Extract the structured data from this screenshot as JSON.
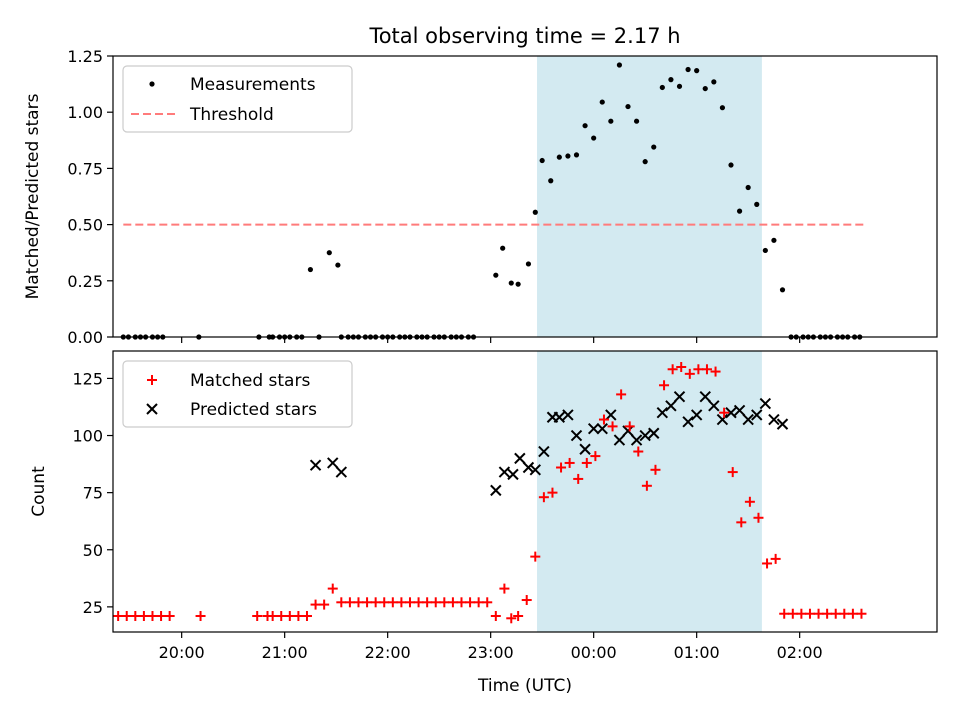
{
  "chart_data": [
    {
      "type": "scatter",
      "title": "Total observing time = 2.17 h",
      "xlabel": "",
      "ylabel": "Matched/Predicted stars",
      "ylim": [
        0,
        1.25
      ],
      "yticks": [
        "0.00",
        "0.25",
        "0.50",
        "0.75",
        "1.00",
        "1.25"
      ],
      "xlim": [
        "19:20",
        "03:20"
      ],
      "xtick_values": [
        "20:00",
        "21:00",
        "22:00",
        "23:00",
        "00:00",
        "01:00",
        "02:00"
      ],
      "shaded_interval": [
        "23:27",
        "01:38"
      ],
      "shade_color": "#d3eaf1",
      "legend_position": "upper left",
      "series": [
        {
          "name": "Measurements",
          "marker": "dot",
          "color": "#000000",
          "points": [
            [
              "19:26",
              0
            ],
            [
              "19:29",
              0
            ],
            [
              "19:33",
              0
            ],
            [
              "19:36",
              0
            ],
            [
              "19:39",
              0
            ],
            [
              "19:43",
              0
            ],
            [
              "19:46",
              0
            ],
            [
              "19:49",
              0
            ],
            [
              "20:10",
              0
            ],
            [
              "20:45",
              0
            ],
            [
              "20:51",
              0
            ],
            [
              "20:53",
              0
            ],
            [
              "20:57",
              0
            ],
            [
              "21:00",
              0
            ],
            [
              "21:03",
              0
            ],
            [
              "21:07",
              0
            ],
            [
              "21:10",
              0
            ],
            [
              "21:15",
              0.3
            ],
            [
              "21:20",
              0
            ],
            [
              "21:26",
              0.375
            ],
            [
              "21:31",
              0.32
            ],
            [
              "21:33",
              0
            ],
            [
              "21:37",
              0
            ],
            [
              "21:40",
              0
            ],
            [
              "21:43",
              0
            ],
            [
              "21:47",
              0
            ],
            [
              "21:50",
              0
            ],
            [
              "21:53",
              0
            ],
            [
              "21:57",
              0
            ],
            [
              "22:00",
              0
            ],
            [
              "22:03",
              0
            ],
            [
              "22:07",
              0
            ],
            [
              "22:10",
              0
            ],
            [
              "22:13",
              0
            ],
            [
              "22:17",
              0
            ],
            [
              "22:20",
              0
            ],
            [
              "22:23",
              0
            ],
            [
              "22:27",
              0
            ],
            [
              "22:30",
              0
            ],
            [
              "22:33",
              0
            ],
            [
              "22:37",
              0
            ],
            [
              "22:40",
              0
            ],
            [
              "22:43",
              0
            ],
            [
              "22:47",
              0
            ],
            [
              "22:50",
              0
            ],
            [
              "23:03",
              0.275
            ],
            [
              "23:07",
              0.395
            ],
            [
              "23:12",
              0.24
            ],
            [
              "23:16",
              0.235
            ],
            [
              "23:22",
              0.325
            ],
            [
              "23:26",
              0.555
            ],
            [
              "23:30",
              0.785
            ],
            [
              "23:35",
              0.695
            ],
            [
              "23:40",
              0.8
            ],
            [
              "23:45",
              0.805
            ],
            [
              "23:50",
              0.81
            ],
            [
              "23:55",
              0.94
            ],
            [
              "00:00",
              0.885
            ],
            [
              "00:05",
              1.045
            ],
            [
              "00:10",
              0.96
            ],
            [
              "00:15",
              1.21
            ],
            [
              "00:20",
              1.025
            ],
            [
              "00:25",
              0.96
            ],
            [
              "00:30",
              0.78
            ],
            [
              "00:35",
              0.845
            ],
            [
              "00:40",
              1.11
            ],
            [
              "00:45",
              1.145
            ],
            [
              "00:50",
              1.115
            ],
            [
              "00:55",
              1.19
            ],
            [
              "01:00",
              1.185
            ],
            [
              "01:05",
              1.105
            ],
            [
              "01:10",
              1.135
            ],
            [
              "01:15",
              1.02
            ],
            [
              "01:20",
              0.765
            ],
            [
              "01:25",
              0.56
            ],
            [
              "01:30",
              0.665
            ],
            [
              "01:35",
              0.59
            ],
            [
              "01:40",
              0.385
            ],
            [
              "01:45",
              0.43
            ],
            [
              "01:50",
              0.21
            ],
            [
              "01:55",
              0
            ],
            [
              "01:58",
              0
            ],
            [
              "02:02",
              0
            ],
            [
              "02:05",
              0
            ],
            [
              "02:08",
              0
            ],
            [
              "02:12",
              0
            ],
            [
              "02:15",
              0
            ],
            [
              "02:18",
              0
            ],
            [
              "02:22",
              0
            ],
            [
              "02:25",
              0
            ],
            [
              "02:28",
              0
            ],
            [
              "02:32",
              0
            ],
            [
              "02:35",
              0
            ]
          ]
        },
        {
          "name": "Threshold",
          "type": "line",
          "style": "dashed",
          "color": "#ff7b7b",
          "points": [
            [
              "19:26",
              0.5
            ],
            [
              "02:38",
              0.5
            ]
          ]
        }
      ]
    },
    {
      "type": "scatter",
      "xlabel": "Time (UTC)",
      "ylabel": "Count",
      "ylim": [
        14,
        137
      ],
      "yticks": [
        "25",
        "50",
        "75",
        "100",
        "125"
      ],
      "xlim": [
        "19:20",
        "03:20"
      ],
      "xticks": [
        "20:00",
        "21:00",
        "22:00",
        "23:00",
        "00:00",
        "01:00",
        "02:00"
      ],
      "xtick_values": [
        "20:00",
        "21:00",
        "22:00",
        "23:00",
        "00:00",
        "01:00",
        "02:00"
      ],
      "shaded_interval": [
        "23:27",
        "01:38"
      ],
      "shade_color": "#d3eaf1",
      "legend_position": "upper left",
      "series": [
        {
          "name": "Matched stars",
          "marker": "plus",
          "color": "#ff0000",
          "points": [
            [
              "19:23",
              21
            ],
            [
              "19:28",
              21
            ],
            [
              "19:33",
              21
            ],
            [
              "19:38",
              21
            ],
            [
              "19:43",
              21
            ],
            [
              "19:48",
              21
            ],
            [
              "19:53",
              21
            ],
            [
              "20:11",
              21
            ],
            [
              "20:44",
              21
            ],
            [
              "20:50",
              21
            ],
            [
              "20:53",
              21
            ],
            [
              "20:58",
              21
            ],
            [
              "21:03",
              21
            ],
            [
              "21:08",
              21
            ],
            [
              "21:13",
              21
            ],
            [
              "21:18",
              26
            ],
            [
              "21:23",
              26
            ],
            [
              "21:28",
              33
            ],
            [
              "21:33",
              27
            ],
            [
              "21:38",
              27
            ],
            [
              "21:43",
              27
            ],
            [
              "21:48",
              27
            ],
            [
              "21:53",
              27
            ],
            [
              "21:58",
              27
            ],
            [
              "22:03",
              27
            ],
            [
              "22:08",
              27
            ],
            [
              "22:13",
              27
            ],
            [
              "22:18",
              27
            ],
            [
              "22:23",
              27
            ],
            [
              "22:28",
              27
            ],
            [
              "22:33",
              27
            ],
            [
              "22:38",
              27
            ],
            [
              "22:43",
              27
            ],
            [
              "22:48",
              27
            ],
            [
              "22:53",
              27
            ],
            [
              "22:58",
              27
            ],
            [
              "23:03",
              21
            ],
            [
              "23:08",
              33
            ],
            [
              "23:12",
              20
            ],
            [
              "23:16",
              21
            ],
            [
              "23:21",
              28
            ],
            [
              "23:26",
              47
            ],
            [
              "23:31",
              73
            ],
            [
              "23:36",
              75
            ],
            [
              "23:41",
              86
            ],
            [
              "23:46",
              88
            ],
            [
              "23:51",
              81
            ],
            [
              "23:56",
              88
            ],
            [
              "00:01",
              91
            ],
            [
              "00:06",
              107
            ],
            [
              "00:11",
              104
            ],
            [
              "00:16",
              118
            ],
            [
              "00:21",
              104
            ],
            [
              "00:26",
              93
            ],
            [
              "00:31",
              78
            ],
            [
              "00:36",
              85
            ],
            [
              "00:41",
              122
            ],
            [
              "00:46",
              129
            ],
            [
              "00:51",
              130
            ],
            [
              "00:56",
              127
            ],
            [
              "01:01",
              129
            ],
            [
              "01:06",
              129
            ],
            [
              "01:11",
              128
            ],
            [
              "01:16",
              110
            ],
            [
              "01:21",
              84
            ],
            [
              "01:26",
              62
            ],
            [
              "01:31",
              71
            ],
            [
              "01:36",
              64
            ],
            [
              "01:41",
              44
            ],
            [
              "01:46",
              46
            ],
            [
              "01:51",
              22
            ],
            [
              "01:56",
              22
            ],
            [
              "02:01",
              22
            ],
            [
              "02:06",
              22
            ],
            [
              "02:11",
              22
            ],
            [
              "02:16",
              22
            ],
            [
              "02:21",
              22
            ],
            [
              "02:26",
              22
            ],
            [
              "02:31",
              22
            ],
            [
              "02:36",
              22
            ]
          ]
        },
        {
          "name": "Predicted stars",
          "marker": "x",
          "color": "#000000",
          "points": [
            [
              "21:18",
              87
            ],
            [
              "21:28",
              88
            ],
            [
              "21:33",
              84
            ],
            [
              "23:03",
              76
            ],
            [
              "23:08",
              84
            ],
            [
              "23:13",
              83
            ],
            [
              "23:17",
              90
            ],
            [
              "23:22",
              86
            ],
            [
              "23:26",
              85
            ],
            [
              "23:31",
              93
            ],
            [
              "23:36",
              108
            ],
            [
              "23:40",
              108
            ],
            [
              "23:45",
              109
            ],
            [
              "23:50",
              100
            ],
            [
              "23:55",
              94
            ],
            [
              "00:00",
              103
            ],
            [
              "00:05",
              103
            ],
            [
              "00:10",
              109
            ],
            [
              "00:15",
              98
            ],
            [
              "00:20",
              102
            ],
            [
              "00:25",
              98
            ],
            [
              "00:30",
              100
            ],
            [
              "00:35",
              101
            ],
            [
              "00:40",
              110
            ],
            [
              "00:45",
              113
            ],
            [
              "00:50",
              117
            ],
            [
              "00:55",
              106
            ],
            [
              "01:00",
              109
            ],
            [
              "01:05",
              117
            ],
            [
              "01:10",
              113
            ],
            [
              "01:15",
              107
            ],
            [
              "01:20",
              110
            ],
            [
              "01:25",
              111
            ],
            [
              "01:30",
              107
            ],
            [
              "01:35",
              109
            ],
            [
              "01:40",
              114
            ],
            [
              "01:45",
              107
            ],
            [
              "01:50",
              105
            ]
          ]
        }
      ]
    }
  ]
}
